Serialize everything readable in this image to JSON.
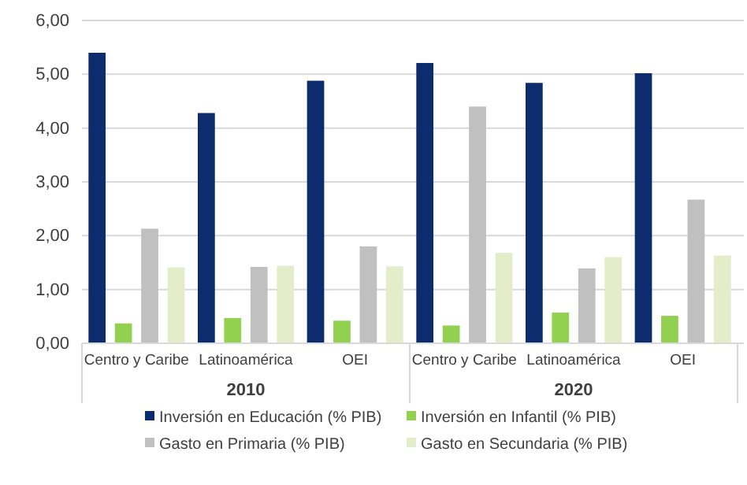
{
  "chart_data": {
    "type": "bar",
    "categories": [
      "Centro y Caribe",
      "Latinoamérica",
      "OEI",
      "Centro y Caribe",
      "Latinoamérica",
      "OEI"
    ],
    "annotations": [
      "2010",
      "2020"
    ],
    "series": [
      {
        "name": "Inversión en Educación (% PIB)",
        "color": "#0c2c6e",
        "values": [
          5.4,
          4.28,
          4.88,
          5.21,
          4.84,
          5.02
        ]
      },
      {
        "name": "Inversión en Infantil (% PIB)",
        "color": "#92d050",
        "values": [
          0.37,
          0.47,
          0.42,
          0.33,
          0.57,
          0.51
        ]
      },
      {
        "name": "Gasto en Primaria (% PIB)",
        "color": "#c0c0c0",
        "values": [
          2.13,
          1.42,
          1.8,
          4.4,
          1.39,
          2.67
        ]
      },
      {
        "name": "Gasto en Secundaria (% PIB)",
        "color": "#e5ecca",
        "values": [
          1.41,
          1.44,
          1.43,
          1.68,
          1.6,
          1.63
        ]
      }
    ],
    "ylim": [
      0,
      6
    ],
    "yticks": [
      {
        "value": 0,
        "label": "0,00"
      },
      {
        "value": 1,
        "label": "1,00"
      },
      {
        "value": 2,
        "label": "2,00"
      },
      {
        "value": 3,
        "label": "3,00"
      },
      {
        "value": 4,
        "label": "4,00"
      },
      {
        "value": 5,
        "label": "5,00"
      },
      {
        "value": 6,
        "label": "6,00"
      }
    ],
    "grid": "y",
    "legend": "bottom"
  }
}
